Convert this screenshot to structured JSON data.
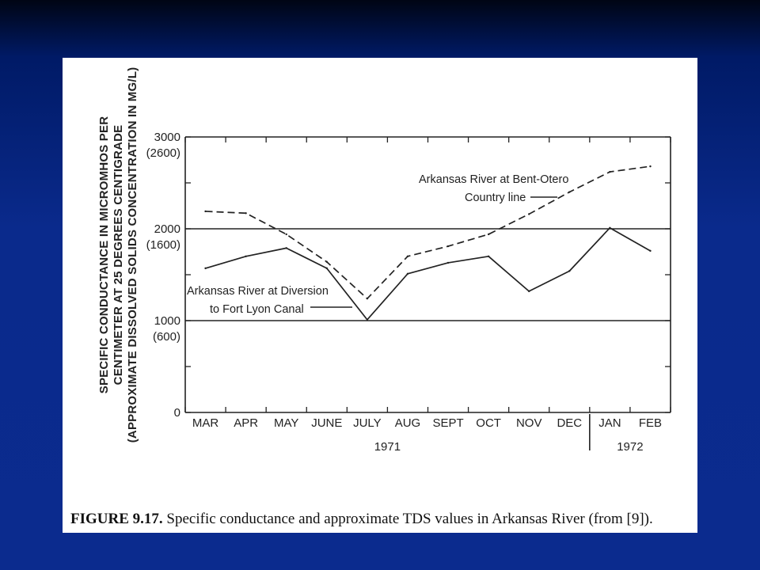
{
  "caption": {
    "number": "FIGURE 9.17.",
    "text": "Specific conductance and approximate TDS values in Arkansas River (from [9])."
  },
  "chart_data": {
    "type": "line",
    "ylabel_lines": [
      "SPECIFIC CONDUCTANCE IN MICROMHOS PER",
      "CENTIMETER AT 25 DEGREES CENTIGRADE",
      "(APPROXIMATE DISSOLVED SOLIDS CONCENTRATION IN MG/L)"
    ],
    "y_ticks": [
      {
        "value": 0,
        "labels": [
          "0"
        ]
      },
      {
        "value": 1000,
        "labels": [
          "1000",
          "(600)"
        ]
      },
      {
        "value": 2000,
        "labels": [
          "2000",
          "(1600)"
        ]
      },
      {
        "value": 3000,
        "labels": [
          "3000",
          "(2600)"
        ]
      }
    ],
    "ylim": [
      0,
      3000
    ],
    "categories": [
      "MAR",
      "APR",
      "MAY",
      "JUNE",
      "JULY",
      "AUG",
      "SEPT",
      "OCT",
      "NOV",
      "DEC",
      "JAN",
      "FEB"
    ],
    "year_labels": [
      {
        "label": "1971",
        "from": "MAR",
        "to": "DEC"
      },
      {
        "label": "1972",
        "from": "JAN",
        "to": "FEB"
      }
    ],
    "gridlines_y": [
      1000,
      2000
    ],
    "series": [
      {
        "name": "Arkansas River at Bent-Otero Country line",
        "label_lines": [
          "Arkansas River at Bent-Otero",
          "Country line"
        ],
        "style": "dashed",
        "values": [
          2190,
          2170,
          1940,
          1640,
          1240,
          1700,
          1810,
          1940,
          2160,
          2400,
          2620,
          2680
        ]
      },
      {
        "name": "Arkansas River at Diversion to Fort Lyon Canal",
        "label_lines": [
          "Arkansas River at Diversion",
          "to Fort Lyon Canal"
        ],
        "style": "solid",
        "values": [
          1570,
          1700,
          1790,
          1570,
          1010,
          1510,
          1630,
          1700,
          1320,
          1540,
          2010,
          1760
        ]
      }
    ]
  }
}
